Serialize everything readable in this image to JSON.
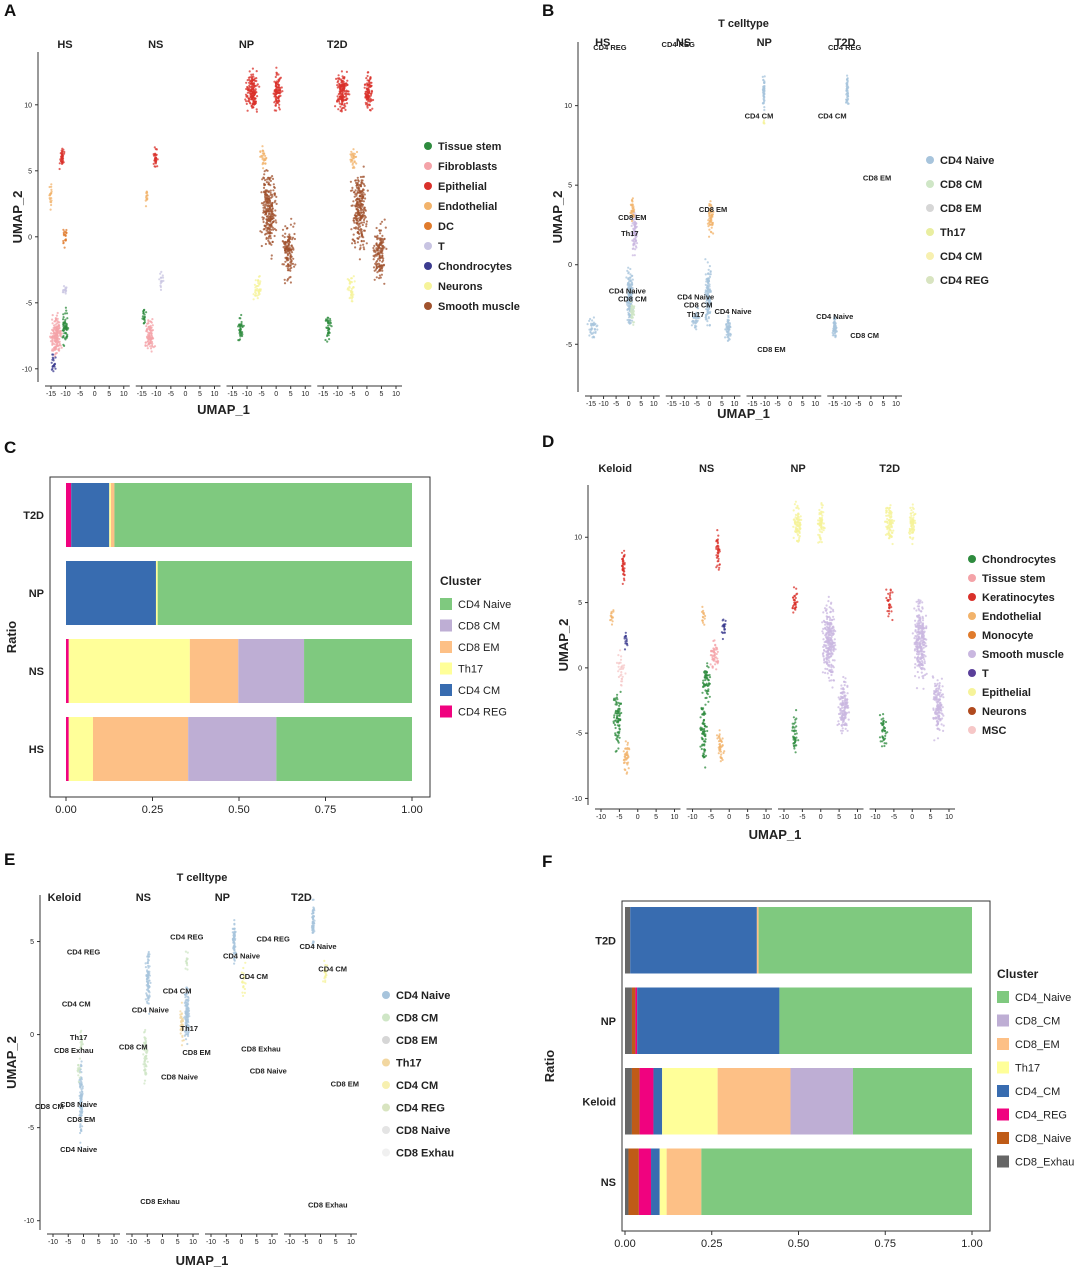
{
  "panel_labels": [
    "A",
    "B",
    "C",
    "D",
    "E",
    "F"
  ],
  "colors": {
    "CD4 Naive": "#7fc97f",
    "CD8 CM": "#beaed4",
    "CD8 EM": "#fdc086",
    "Th17": "#ffff99",
    "CD4 CM": "#386cb0",
    "CD4 REG": "#f0027f",
    "CD8 Naive": "#bf5b17",
    "CD8 Exhau": "#666666"
  },
  "chart_data": [
    {
      "id": "A",
      "type": "scatter",
      "title": "",
      "xlabel": "UMAP_1",
      "ylabel": "UMAP_2",
      "facets": [
        "HS",
        "NS",
        "NP",
        "T2D"
      ],
      "xticks": [
        "-15",
        "-10",
        "-5",
        "0",
        "5",
        "10"
      ],
      "yticks": [
        "10",
        "5",
        "0",
        "-5",
        "-10"
      ],
      "ylim": [
        -11,
        14
      ],
      "legend_position": "right",
      "legend": [
        {
          "name": "Tissue stem",
          "color": "#2e8b3e"
        },
        {
          "name": "Fibroblasts",
          "color": "#f4a3a8"
        },
        {
          "name": "Epithelial",
          "color": "#d9302a"
        },
        {
          "name": "Endothelial",
          "color": "#f2b36b"
        },
        {
          "name": "DC",
          "color": "#e07b2c"
        },
        {
          "name": "T",
          "color": "#c8c4e2"
        },
        {
          "name": "Chondrocytes",
          "color": "#3b3b8f"
        },
        {
          "name": "Neurons",
          "color": "#f6f39a"
        },
        {
          "name": "Smooth muscle",
          "color": "#a0522d"
        }
      ]
    },
    {
      "id": "B",
      "type": "scatter",
      "title": "T celltype",
      "xlabel": "UMAP_1",
      "ylabel": "UMAP_2",
      "facets": [
        "HS",
        "NS",
        "NP",
        "T2D"
      ],
      "xticks": [
        "-15",
        "-10",
        "-5",
        "0",
        "5",
        "10"
      ],
      "yticks": [
        "10",
        "5",
        "0",
        "-5"
      ],
      "ylim": [
        -8,
        14
      ],
      "legend_position": "right",
      "legend": [
        {
          "name": "CD4 Naive",
          "color": "#a7c4dc"
        },
        {
          "name": "CD8 CM",
          "color": "#cfe6c6"
        },
        {
          "name": "CD8 EM",
          "color": "#d6d6d6"
        },
        {
          "name": "Th17",
          "color": "#e9eea0"
        },
        {
          "name": "CD4 CM",
          "color": "#f7f0b0"
        },
        {
          "name": "CD4 REG",
          "color": "#d8e4c0"
        }
      ],
      "annotations": [
        {
          "facet": "HS",
          "text": "CD4 REG",
          "x": -5,
          "y": 13.5
        },
        {
          "facet": "HS",
          "text": "CD8 EM",
          "x": 4,
          "y": 2.8
        },
        {
          "facet": "HS",
          "text": "Th17",
          "x": 3,
          "y": 1.8
        },
        {
          "facet": "HS",
          "text": "CD4 Naive",
          "x": 2,
          "y": -1.8
        },
        {
          "facet": "HS",
          "text": "CD8 CM",
          "x": 4,
          "y": -2.3
        },
        {
          "facet": "NS",
          "text": "CD4 REG",
          "x": -10,
          "y": 13.7
        },
        {
          "facet": "NS",
          "text": "CD8 EM",
          "x": 4,
          "y": 3.3
        },
        {
          "facet": "NS",
          "text": "CD4 Naive",
          "x": -3,
          "y": -2.2
        },
        {
          "facet": "NS",
          "text": "CD8 CM",
          "x": -2,
          "y": -2.7
        },
        {
          "facet": "NS",
          "text": "Th17",
          "x": -3,
          "y": -3.3
        },
        {
          "facet": "NS",
          "text": "CD4 Naive",
          "x": 12,
          "y": -3.1
        },
        {
          "facet": "NP",
          "text": "CD4 CM",
          "x": -10,
          "y": 9.2
        },
        {
          "facet": "NP",
          "text": "CD8 EM",
          "x": -5,
          "y": -5.5
        },
        {
          "facet": "T2D",
          "text": "CD4 REG",
          "x": -8,
          "y": 13.5
        },
        {
          "facet": "T2D",
          "text": "CD4 CM",
          "x": -13,
          "y": 9.2
        },
        {
          "facet": "T2D",
          "text": "CD8 EM",
          "x": 5,
          "y": 5.3
        },
        {
          "facet": "T2D",
          "text": "CD4 Naive",
          "x": -12,
          "y": -3.4
        },
        {
          "facet": "T2D",
          "text": "CD8 CM",
          "x": 0,
          "y": -4.6
        }
      ]
    },
    {
      "id": "C",
      "type": "bar",
      "orientation": "horizontal",
      "stacked": true,
      "ylabel": "Ratio",
      "xlabel": "",
      "legend_title": "Cluster",
      "legend_position": "right",
      "xlim": [
        0,
        1
      ],
      "xticks": [
        "0.00",
        "0.25",
        "0.50",
        "0.75",
        "1.00"
      ],
      "categories": [
        "T2D",
        "NP",
        "NS",
        "HS"
      ],
      "legend": [
        "CD4 Naive",
        "CD8 CM",
        "CD8 EM",
        "Th17",
        "CD4 CM",
        "CD4 REG"
      ],
      "series": [
        {
          "name": "CD4 REG",
          "values": [
            0.015,
            0.0,
            0.008,
            0.008
          ]
        },
        {
          "name": "CD4 CM",
          "values": [
            0.11,
            0.26,
            0.0,
            0.0
          ]
        },
        {
          "name": "Th17",
          "values": [
            0.005,
            0.005,
            0.35,
            0.07
          ]
        },
        {
          "name": "CD8 EM",
          "values": [
            0.01,
            0.0,
            0.14,
            0.275
          ]
        },
        {
          "name": "CD8 CM",
          "values": [
            0.0,
            0.0,
            0.19,
            0.255
          ]
        },
        {
          "name": "CD4 Naive",
          "values": [
            0.86,
            0.735,
            0.312,
            0.392
          ]
        }
      ]
    },
    {
      "id": "D",
      "type": "scatter",
      "title": "",
      "xlabel": "UMAP_1",
      "ylabel": "UMAP_2",
      "facets": [
        "Keloid",
        "NS",
        "NP",
        "T2D"
      ],
      "xticks": [
        "-10",
        "-5",
        "0",
        "5",
        "10"
      ],
      "yticks": [
        "10",
        "5",
        "0",
        "-5",
        "-10"
      ],
      "ylim": [
        -10.5,
        14
      ],
      "legend_position": "right",
      "legend": [
        {
          "name": "Chondrocytes",
          "color": "#2e8b3e"
        },
        {
          "name": "Tissue stem",
          "color": "#f4a3a8"
        },
        {
          "name": "Keratinocytes",
          "color": "#d9302a"
        },
        {
          "name": "Endothelial",
          "color": "#f2b36b"
        },
        {
          "name": "Monocyte",
          "color": "#e07b2c"
        },
        {
          "name": "Smooth muscle",
          "color": "#c9b7e0"
        },
        {
          "name": "T",
          "color": "#5a3f9a"
        },
        {
          "name": "Epithelial",
          "color": "#f6f39a"
        },
        {
          "name": "Neurons",
          "color": "#b04a1e"
        },
        {
          "name": "MSC",
          "color": "#f6c7c7"
        }
      ]
    },
    {
      "id": "E",
      "type": "scatter",
      "title": "T celltype",
      "xlabel": "UMAP_1",
      "ylabel": "UMAP_2",
      "facets": [
        "Keloid",
        "NS",
        "NP",
        "T2D"
      ],
      "xticks": [
        "-10",
        "-5",
        "0",
        "5",
        "10"
      ],
      "yticks": [
        "5",
        "0",
        "-5",
        "-10"
      ],
      "ylim": [
        -10.5,
        7.5
      ],
      "legend_position": "right",
      "legend": [
        {
          "name": "CD4 Naive",
          "color": "#a7c4dc"
        },
        {
          "name": "CD8 CM",
          "color": "#cfe6c6"
        },
        {
          "name": "CD8 EM",
          "color": "#d6d6d6"
        },
        {
          "name": "Th17",
          "color": "#f2d7a0"
        },
        {
          "name": "CD4 CM",
          "color": "#f7f0b0"
        },
        {
          "name": "CD4 REG",
          "color": "#d8e4c0"
        },
        {
          "name": "CD8  Naive",
          "color": "#e4e4e4"
        },
        {
          "name": "CD8 Exhau",
          "color": "#f0f0f0"
        }
      ],
      "annotations": [
        {
          "facet": "Keloid",
          "text": "CD4 REG",
          "x": 0,
          "y": 4.3
        },
        {
          "facet": "Keloid",
          "text": "CD4 CM",
          "x": -3,
          "y": 1.5
        },
        {
          "facet": "Keloid",
          "text": "Th17",
          "x": -2,
          "y": -0.3
        },
        {
          "facet": "Keloid",
          "text": "CD8 Exhau",
          "x": -4,
          "y": -1.0
        },
        {
          "facet": "Keloid",
          "text": "CD8 CM",
          "x": -14,
          "y": -4.0
        },
        {
          "facet": "Keloid",
          "text": "CD8 Naive",
          "x": -2,
          "y": -3.9
        },
        {
          "facet": "Keloid",
          "text": "CD8 EM",
          "x": -1,
          "y": -4.7
        },
        {
          "facet": "Keloid",
          "text": "CD4 Naive",
          "x": -2,
          "y": -6.3
        },
        {
          "facet": "NS",
          "text": "CD8 CM",
          "x": -12,
          "y": -0.8
        },
        {
          "facet": "NS",
          "text": "CD4 Naive",
          "x": -5,
          "y": 1.2
        },
        {
          "facet": "NS",
          "text": "CD4 REG",
          "x": 10,
          "y": 5.1
        },
        {
          "facet": "NS",
          "text": "CD4 CM",
          "x": 6,
          "y": 2.2
        },
        {
          "facet": "NS",
          "text": "Th17",
          "x": 11,
          "y": 0.2
        },
        {
          "facet": "NS",
          "text": "CD8 EM",
          "x": 14,
          "y": -1.1
        },
        {
          "facet": "NS",
          "text": "CD8 Naive",
          "x": 7,
          "y": -2.4
        },
        {
          "facet": "NS",
          "text": "CD8 Exhau",
          "x": -1,
          "y": -9.1
        },
        {
          "facet": "NP",
          "text": "CD4 Naive",
          "x": 0,
          "y": 4.1
        },
        {
          "facet": "NP",
          "text": "CD4 REG",
          "x": 13,
          "y": 5.0
        },
        {
          "facet": "NP",
          "text": "CD4 CM",
          "x": 5,
          "y": 3.0
        },
        {
          "facet": "NP",
          "text": "CD8 Exhau",
          "x": 8,
          "y": -0.9
        },
        {
          "facet": "NP",
          "text": "CD8 Naive",
          "x": 11,
          "y": -2.1
        },
        {
          "facet": "T2D",
          "text": "CD4 Naive",
          "x": -1,
          "y": 4.6
        },
        {
          "facet": "T2D",
          "text": "CD4 CM",
          "x": 5,
          "y": 3.4
        },
        {
          "facet": "T2D",
          "text": "CD8 EM",
          "x": 10,
          "y": -2.8
        },
        {
          "facet": "T2D",
          "text": "CD8 Exhau",
          "x": 3,
          "y": -9.3
        }
      ]
    },
    {
      "id": "F",
      "type": "bar",
      "orientation": "horizontal",
      "stacked": true,
      "ylabel": "Ratio",
      "xlabel": "",
      "legend_title": "Cluster",
      "legend_position": "right",
      "xlim": [
        0,
        1
      ],
      "xticks": [
        "0.00",
        "0.25",
        "0.50",
        "0.75",
        "1.00"
      ],
      "categories": [
        "T2D",
        "NP",
        "Keloid",
        "NS"
      ],
      "legend": [
        "CD4_Naive",
        "CD8_CM",
        "CD8_EM",
        "Th17",
        "CD4_CM",
        "CD4_REG",
        "CD8_Naive",
        "CD8_Exhau"
      ],
      "series": [
        {
          "name": "CD8_Exhau",
          "values": [
            0.015,
            0.02,
            0.02,
            0.01
          ]
        },
        {
          "name": "CD8_Naive",
          "values": [
            0.0,
            0.01,
            0.022,
            0.03
          ]
        },
        {
          "name": "CD4_REG",
          "values": [
            0.0,
            0.005,
            0.04,
            0.035
          ]
        },
        {
          "name": "CD4_CM",
          "values": [
            0.365,
            0.41,
            0.025,
            0.025
          ]
        },
        {
          "name": "Th17",
          "values": [
            0.0,
            0.0,
            0.16,
            0.02
          ]
        },
        {
          "name": "CD8_EM",
          "values": [
            0.005,
            0.0,
            0.21,
            0.1
          ]
        },
        {
          "name": "CD8_CM",
          "values": [
            0.0,
            0.0,
            0.18,
            0.0
          ]
        },
        {
          "name": "CD4_Naive",
          "values": [
            0.615,
            0.555,
            0.343,
            0.78
          ]
        }
      ]
    }
  ]
}
